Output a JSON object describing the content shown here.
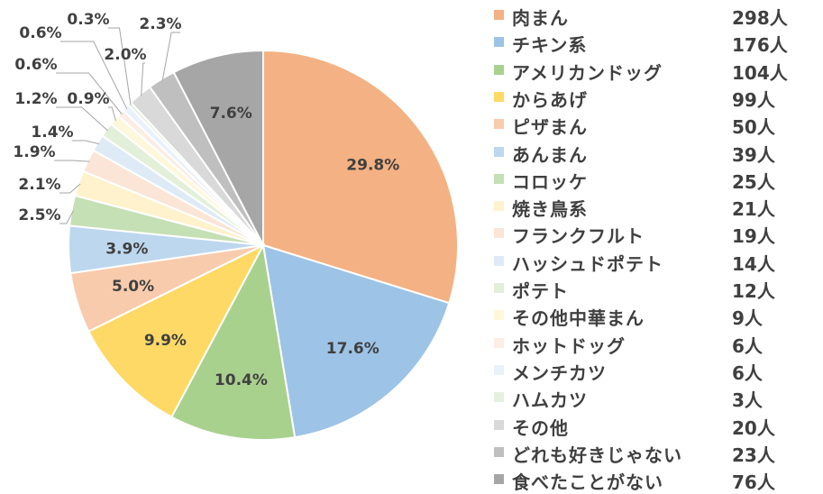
{
  "chart_data": {
    "type": "pie",
    "title": "",
    "unit": "人",
    "slices": [
      {
        "label": "肉まん",
        "value": 298,
        "count_text": "298人",
        "percent_text": "29.8%",
        "color": "#F4B183"
      },
      {
        "label": "チキン系",
        "value": 176,
        "count_text": "176人",
        "percent_text": "17.6%",
        "color": "#9DC3E6"
      },
      {
        "label": "アメリカンドッグ",
        "value": 104,
        "count_text": "104人",
        "percent_text": "10.4%",
        "color": "#A9D18E"
      },
      {
        "label": "からあげ",
        "value": 99,
        "count_text": "99人",
        "percent_text": "9.9%",
        "color": "#FFD966"
      },
      {
        "label": "ピザまん",
        "value": 50,
        "count_text": "50人",
        "percent_text": "5.0%",
        "color": "#F8CBAD"
      },
      {
        "label": "あんまん",
        "value": 39,
        "count_text": "39人",
        "percent_text": "3.9%",
        "color": "#BDD7EE"
      },
      {
        "label": "コロッケ",
        "value": 25,
        "count_text": "25人",
        "percent_text": "2.5%",
        "color": "#C5E0B4"
      },
      {
        "label": "焼き鳥系",
        "value": 21,
        "count_text": "21人",
        "percent_text": "2.1%",
        "color": "#FFF2CC"
      },
      {
        "label": "フランクフルト",
        "value": 19,
        "count_text": "19人",
        "percent_text": "1.9%",
        "color": "#FBE5D6"
      },
      {
        "label": "ハッシュドポテト",
        "value": 14,
        "count_text": "14人",
        "percent_text": "1.4%",
        "color": "#DEEBF7"
      },
      {
        "label": "ポテト",
        "value": 12,
        "count_text": "12人",
        "percent_text": "1.2%",
        "color": "#E2F0D9"
      },
      {
        "label": "その他中華まん",
        "value": 9,
        "count_text": "9人",
        "percent_text": "0.9%",
        "color": "#FFF7DC"
      },
      {
        "label": "ホットドッグ",
        "value": 6,
        "count_text": "6人",
        "percent_text": "0.6%",
        "color": "#FCEDE4"
      },
      {
        "label": "メンチカツ",
        "value": 6,
        "count_text": "6人",
        "percent_text": "0.6%",
        "color": "#E9F1FA"
      },
      {
        "label": "ハムカツ",
        "value": 3,
        "count_text": "3人",
        "percent_text": "0.3%",
        "color": "#E6F0DF"
      },
      {
        "label": "その他",
        "value": 20,
        "count_text": "20人",
        "percent_text": "2.0%",
        "color": "#D9D9D9"
      },
      {
        "label": "どれも好きじゃない",
        "value": 23,
        "count_text": "23人",
        "percent_text": "2.3%",
        "color": "#BFBFBF"
      },
      {
        "label": "食べたことがない",
        "value": 76,
        "count_text": "76人",
        "percent_text": "7.6%",
        "color": "#A6A6A6"
      }
    ],
    "legend_position": "right",
    "label_color": "#404040",
    "leader_color": "#A6A6A6"
  }
}
